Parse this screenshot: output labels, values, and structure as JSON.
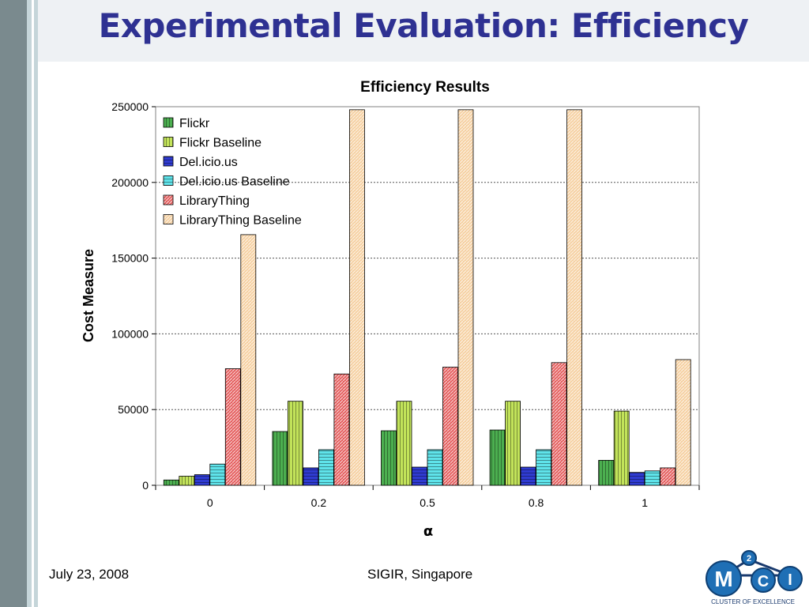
{
  "slide": {
    "title": "Experimental Evaluation: Efficiency",
    "footer_date": "July 23, 2008",
    "footer_venue": "SIGIR, Singapore",
    "logo_text": "CLUSTER OF EXCELLENCE",
    "logo_letters": [
      "M",
      "C",
      "I"
    ],
    "logo_superscript": "2"
  },
  "chart_data": {
    "type": "bar",
    "title": "Efficiency Results",
    "xlabel": "α",
    "ylabel": "Cost Measure",
    "ylim": [
      0,
      250000
    ],
    "yticks": [
      0,
      50000,
      100000,
      150000,
      200000,
      250000
    ],
    "ytick_labels": [
      "0",
      "50000",
      "100000",
      "150000",
      "200000",
      "250000"
    ],
    "categories": [
      "0",
      "0.2",
      "0.5",
      "0.8",
      "1"
    ],
    "grid": true,
    "legend_position": "top-left",
    "series": [
      {
        "name": "Flickr",
        "color": "#4caf50",
        "pattern": "vertical",
        "values": [
          3500,
          35500,
          36000,
          36500,
          16500
        ]
      },
      {
        "name": "Flickr Baseline",
        "color": "#c2e35a",
        "pattern": "vertical",
        "values": [
          6000,
          55500,
          55500,
          55500,
          49000
        ]
      },
      {
        "name": "Del.icio.us",
        "color": "#2f3bd1",
        "pattern": "horizontal",
        "values": [
          7000,
          11500,
          12000,
          12000,
          8500
        ]
      },
      {
        "name": "Del.icio.us Baseline",
        "color": "#5fe3ea",
        "pattern": "horizontal",
        "values": [
          14000,
          23500,
          23500,
          23500,
          9500
        ]
      },
      {
        "name": "LibraryThing",
        "color": "#e45a5a",
        "pattern": "diagonal",
        "values": [
          77000,
          73500,
          78000,
          81000,
          11500
        ]
      },
      {
        "name": "LibraryThing Baseline",
        "color": "#f5cf9f",
        "pattern": "diagonal",
        "values": [
          165500,
          248000,
          248000,
          248000,
          83000
        ]
      }
    ]
  }
}
